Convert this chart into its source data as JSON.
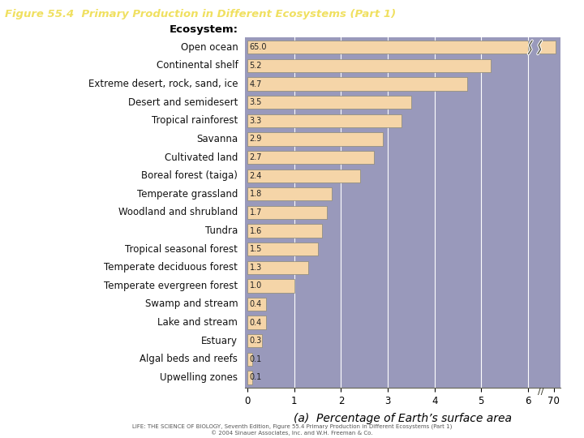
{
  "title": "Figure 55.4  Primary Production in Different Ecosystems (Part 1)",
  "title_bg_color": "#5a5a8a",
  "title_text_color": "#f0e060",
  "categories": [
    "Open ocean",
    "Continental shelf",
    "Extreme desert, rock, sand, ice",
    "Desert and semidesert",
    "Tropical rainforest",
    "Savanna",
    "Cultivated land",
    "Boreal forest (taiga)",
    "Temperate grassland",
    "Woodland and shrubland",
    "Tundra",
    "Tropical seasonal forest",
    "Temperate deciduous forest",
    "Temperate evergreen forest",
    "Swamp and stream",
    "Lake and stream",
    "Estuary",
    "Algal beds and reefs",
    "Upwelling zones"
  ],
  "values": [
    65.0,
    5.2,
    4.7,
    3.5,
    3.3,
    2.9,
    2.7,
    2.4,
    1.8,
    1.7,
    1.6,
    1.5,
    1.3,
    1.0,
    0.4,
    0.4,
    0.3,
    0.1,
    0.1
  ],
  "bar_color": "#f5d5a8",
  "bar_edge_color": "#888877",
  "bg_color": "#9999bb",
  "xlabel": "(a)  Percentage of Earth’s surface area",
  "xlabel_fontsize": 10,
  "footnote": "LIFE: THE SCIENCE OF BIOLOGY, Seventh Edition, Figure 55.4 Primary Production in Different Ecosystems (Part 1)\n© 2004 Sinauer Associates, Inc. and W.H. Freeman & Co.",
  "value_fontsize": 7,
  "category_fontsize": 8.5,
  "ecosystem_label": "Ecosystem:"
}
